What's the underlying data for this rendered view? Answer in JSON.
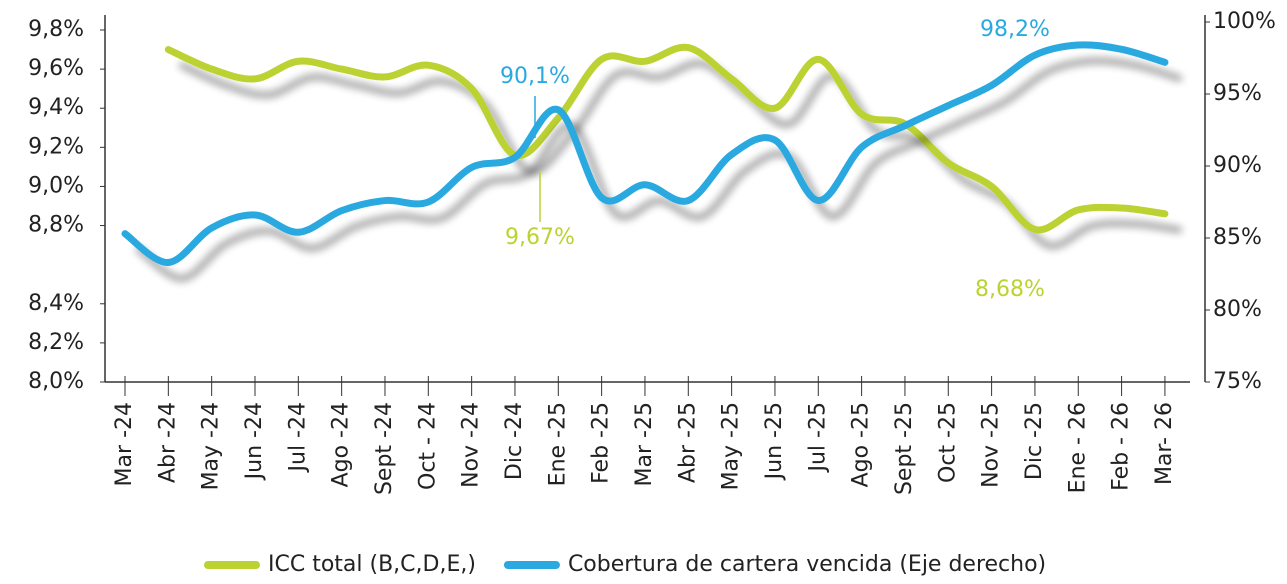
{
  "chart_data": {
    "type": "line",
    "categories": [
      "Mar -24",
      "Abr -24",
      "May -24",
      "Jun -24",
      "Jul -24",
      "Ago -24",
      "Sept -24",
      "Oct - 24",
      "Nov -24",
      "Dic -24",
      "Ene -25",
      "Feb -25",
      "Mar -25",
      "Abr -25",
      "May -25",
      "Jun -25",
      "Jul -25",
      "Ago -25",
      "Sept -25",
      "Oct -25",
      "Nov -25",
      "Dic -25",
      "Ene - 26",
      "Feb - 26",
      "Mar- 26"
    ],
    "series": [
      {
        "name": "ICC total (B,C,D,E,)",
        "color": "#bcd232",
        "values": [
          null,
          9.7,
          9.6,
          9.55,
          9.64,
          9.6,
          9.56,
          9.62,
          9.5,
          9.16,
          9.35,
          9.65,
          9.64,
          9.71,
          9.55,
          9.4,
          9.65,
          9.37,
          9.32,
          9.12,
          9.0,
          8.78,
          8.88,
          8.89,
          8.86
        ]
      },
      {
        "name": "Cobertura de cartera vencida (Eje derecho)",
        "color": "#29a9e0",
        "axis": "y2",
        "values": [
          85.3,
          83.3,
          85.7,
          86.6,
          85.4,
          86.9,
          87.6,
          87.5,
          89.9,
          90.6,
          93.9,
          87.8,
          88.7,
          87.6,
          90.8,
          91.8,
          87.6,
          91.3,
          92.8,
          94.2,
          95.6,
          97.7,
          98.4,
          98.1,
          97.2
        ]
      }
    ],
    "ylim": [
      8.0,
      9.8
    ],
    "yticks": [
      {
        "value": 9.8,
        "label": "9,8%"
      },
      {
        "value": 9.6,
        "label": "9,6%"
      },
      {
        "value": 9.4,
        "label": "9,4%"
      },
      {
        "value": 9.2,
        "label": "9,2%"
      },
      {
        "value": 9.0,
        "label": "9,0%"
      },
      {
        "value": 8.8,
        "label": "8,8%"
      },
      {
        "value": 8.4,
        "label": "8,4%"
      },
      {
        "value": 8.2,
        "label": "8,2%"
      },
      {
        "value": 8.0,
        "label": "8,0%"
      }
    ],
    "y2lim": [
      75,
      100
    ],
    "y2ticks": [
      {
        "value": 100,
        "label": "100%"
      },
      {
        "value": 95,
        "label": "95%"
      },
      {
        "value": 90,
        "label": "90%"
      },
      {
        "value": 85,
        "label": "85%"
      },
      {
        "value": 80,
        "label": "80%"
      },
      {
        "value": 75,
        "label": "75%"
      }
    ],
    "annotations": [
      {
        "text": "90,1%"
      },
      {
        "text": "9,67%"
      },
      {
        "text": "98,2%"
      },
      {
        "text": "8,68%"
      }
    ],
    "legend": "bottom"
  }
}
